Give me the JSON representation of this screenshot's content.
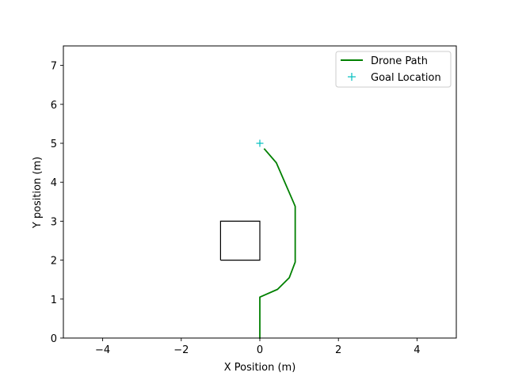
{
  "chart_data": {
    "type": "line",
    "title": "",
    "xlabel": "X Position (m)",
    "ylabel": "Y position (m)",
    "xlim": [
      -5,
      5
    ],
    "ylim": [
      0,
      7.5
    ],
    "xticks": [
      -4,
      -2,
      0,
      2,
      4
    ],
    "xtick_labels": [
      "−4",
      "−2",
      "0",
      "2",
      "4"
    ],
    "yticks": [
      0,
      1,
      2,
      3,
      4,
      5,
      6,
      7
    ],
    "ytick_labels": [
      "0",
      "1",
      "2",
      "3",
      "4",
      "5",
      "6",
      "7"
    ],
    "grid": false,
    "legend_position": "top-right",
    "series": [
      {
        "name": "Drone Path",
        "kind": "line",
        "color": "#008000",
        "x": [
          0.0,
          0.0,
          0.45,
          0.75,
          0.9,
          0.9,
          0.85,
          0.42,
          0.12
        ],
        "y": [
          0.0,
          1.05,
          1.25,
          1.55,
          1.95,
          3.38,
          3.5,
          4.5,
          4.85
        ]
      },
      {
        "name": "Goal Location",
        "kind": "marker",
        "marker": "+",
        "color": "#00bfbf",
        "x": [
          0.0
        ],
        "y": [
          5.0
        ]
      }
    ],
    "shapes": [
      {
        "kind": "rectangle",
        "color": "#000000",
        "x": [
          -1,
          0,
          0,
          -1,
          -1
        ],
        "y": [
          2,
          2,
          3,
          3,
          2
        ]
      }
    ]
  }
}
